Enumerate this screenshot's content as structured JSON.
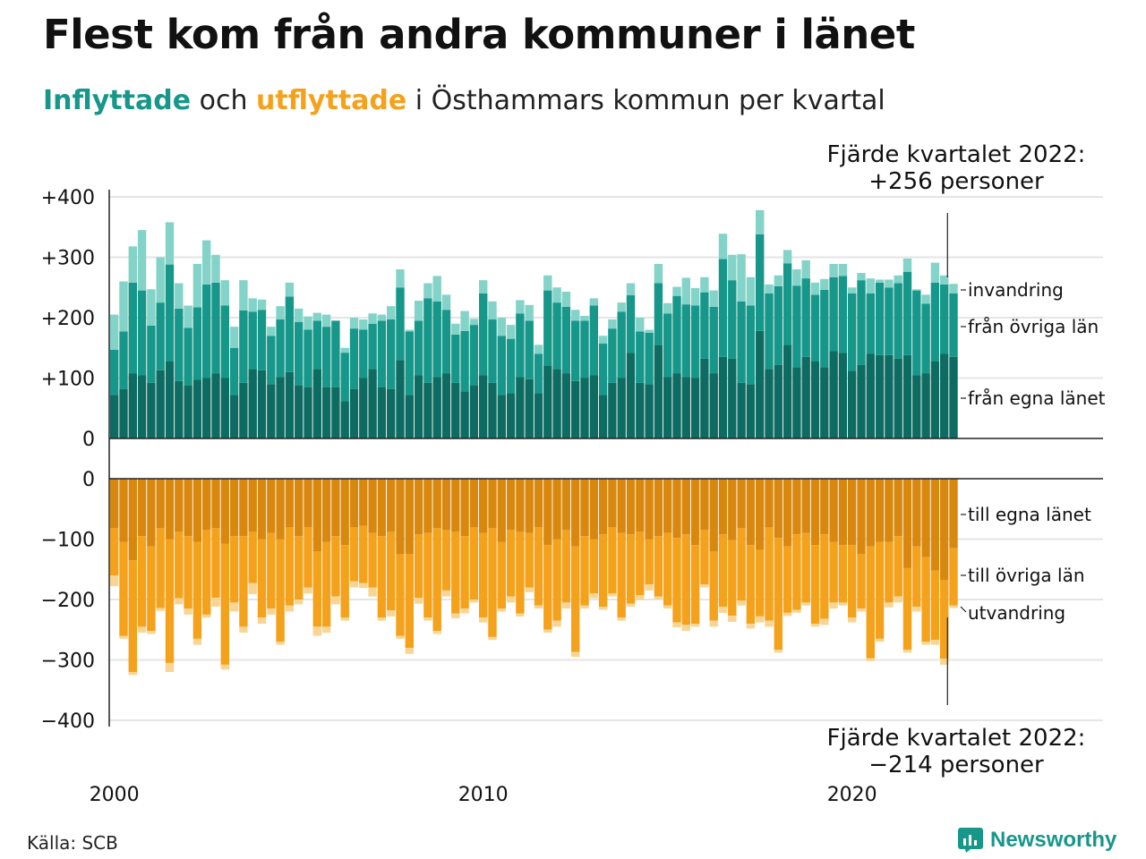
{
  "title": "Flest kom från andra kommuner i länet",
  "subtitle": {
    "in_word": "Inflyttade",
    "and_word": " och ",
    "out_word": "utflyttade",
    "rest": " i Östhammars kommun per kvartal"
  },
  "source": "Källa: SCB",
  "brand": "Newsworthy",
  "colors": {
    "in_own": "#0d6b62",
    "in_other": "#17978a",
    "in_abroad": "#84d3c8",
    "out_own": "#d9880f",
    "out_other": "#f4a11b",
    "out_abroad": "#f8d595",
    "grid": "#e5e5e5",
    "text": "#111111"
  },
  "chart_data": {
    "type": "bar",
    "stacked": true,
    "x_start": 2000,
    "x_tick_labels": [
      "2000",
      "2010",
      "2020"
    ],
    "y_ticks_top": [
      "0",
      "+100",
      "+200",
      "+300",
      "+400"
    ],
    "y_ticks_bottom": [
      "0",
      "−100",
      "−200",
      "−300",
      "−400"
    ],
    "ylim_top": [
      0,
      400
    ],
    "ylim_bottom": [
      -400,
      0
    ],
    "grid": true,
    "annotations": {
      "top_line1": "Fjärde kvartalet 2022:",
      "top_line2": "+256 personer",
      "bottom_line1": "Fjärde kvartalet 2022:",
      "bottom_line2": "−214 personer"
    },
    "series_labels_in": {
      "abroad": "invandring",
      "other": "från övriga län",
      "own": "från egna länet"
    },
    "series_labels_out": {
      "own": "till egna länet",
      "other": "till övriga län",
      "abroad": "utvandring"
    },
    "in_own": [
      72,
      82,
      108,
      105,
      92,
      113,
      128,
      95,
      88,
      97,
      100,
      108,
      100,
      72,
      92,
      115,
      113,
      90,
      102,
      110,
      88,
      85,
      115,
      85,
      85,
      62,
      82,
      100,
      115,
      85,
      82,
      130,
      72,
      105,
      92,
      102,
      108,
      92,
      78,
      88,
      105,
      92,
      72,
      75,
      102,
      98,
      75,
      120,
      115,
      108,
      95,
      100,
      105,
      72,
      92,
      100,
      142,
      92,
      90,
      155,
      102,
      108,
      102,
      100,
      132,
      108,
      135,
      132,
      92,
      90,
      178,
      115,
      122,
      155,
      118,
      135,
      128,
      118,
      145,
      142,
      112,
      122,
      140,
      138,
      138,
      132,
      138,
      105,
      108,
      128,
      140,
      135
    ],
    "in_other": [
      75,
      95,
      150,
      140,
      95,
      112,
      160,
      120,
      95,
      120,
      155,
      150,
      120,
      78,
      120,
      95,
      100,
      80,
      95,
      125,
      105,
      95,
      80,
      100,
      110,
      80,
      100,
      80,
      75,
      110,
      115,
      120,
      105,
      90,
      140,
      125,
      105,
      80,
      100,
      100,
      135,
      105,
      98,
      90,
      105,
      97,
      65,
      125,
      110,
      110,
      100,
      95,
      115,
      85,
      90,
      110,
      95,
      85,
      85,
      102,
      105,
      128,
      120,
      120,
      110,
      110,
      162,
      130,
      135,
      130,
      160,
      125,
      130,
      135,
      135,
      130,
      110,
      128,
      122,
      127,
      128,
      140,
      100,
      120,
      112,
      125,
      138,
      140,
      115,
      130,
      115,
      105
    ],
    "in_abroad": [
      58,
      83,
      60,
      100,
      60,
      75,
      70,
      42,
      37,
      72,
      73,
      46,
      42,
      35,
      50,
      22,
      17,
      15,
      22,
      23,
      22,
      22,
      13,
      20,
      0,
      8,
      18,
      17,
      17,
      10,
      22,
      30,
      3,
      33,
      25,
      42,
      25,
      18,
      33,
      10,
      22,
      30,
      30,
      23,
      22,
      26,
      15,
      25,
      25,
      25,
      18,
      8,
      12,
      13,
      15,
      15,
      20,
      23,
      5,
      32,
      17,
      15,
      44,
      29,
      25,
      27,
      42,
      42,
      78,
      47,
      40,
      15,
      18,
      22,
      27,
      30,
      20,
      18,
      22,
      20,
      10,
      12,
      25,
      5,
      13,
      13,
      22,
      2,
      15,
      33,
      15,
      16
    ],
    "out_own": [
      82,
      105,
      135,
      95,
      112,
      82,
      100,
      88,
      95,
      105,
      85,
      82,
      108,
      95,
      95,
      88,
      100,
      90,
      100,
      80,
      95,
      80,
      120,
      105,
      95,
      110,
      80,
      78,
      90,
      95,
      88,
      125,
      125,
      92,
      90,
      82,
      85,
      88,
      95,
      80,
      90,
      82,
      105,
      85,
      88,
      90,
      80,
      110,
      100,
      85,
      112,
      95,
      100,
      92,
      80,
      90,
      92,
      88,
      100,
      95,
      90,
      98,
      92,
      110,
      85,
      120,
      92,
      102,
      82,
      110,
      118,
      80,
      98,
      112,
      92,
      90,
      110,
      92,
      105,
      110,
      110,
      125,
      112,
      105,
      105,
      95,
      148,
      112,
      130,
      152,
      168,
      115
    ],
    "out_other": [
      78,
      155,
      185,
      150,
      140,
      132,
      205,
      110,
      120,
      160,
      140,
      115,
      200,
      110,
      150,
      85,
      130,
      125,
      170,
      130,
      105,
      100,
      125,
      140,
      100,
      120,
      90,
      95,
      90,
      135,
      130,
      135,
      155,
      105,
      140,
      170,
      100,
      135,
      120,
      120,
      140,
      180,
      110,
      110,
      135,
      90,
      130,
      140,
      135,
      120,
      175,
      115,
      90,
      120,
      110,
      140,
      115,
      105,
      75,
      100,
      120,
      140,
      150,
      130,
      90,
      115,
      120,
      125,
      120,
      130,
      110,
      155,
      185,
      110,
      125,
      115,
      130,
      140,
      100,
      95,
      120,
      90,
      185,
      160,
      100,
      100,
      135,
      100,
      140,
      115,
      130,
      95
    ],
    "out_abroad": [
      18,
      5,
      5,
      10,
      5,
      5,
      15,
      10,
      10,
      10,
      5,
      15,
      8,
      15,
      10,
      18,
      10,
      10,
      5,
      10,
      8,
      10,
      15,
      10,
      13,
      5,
      10,
      8,
      15,
      5,
      10,
      5,
      10,
      10,
      5,
      5,
      10,
      8,
      8,
      5,
      8,
      5,
      5,
      10,
      5,
      8,
      5,
      5,
      10,
      10,
      8,
      5,
      8,
      5,
      5,
      5,
      5,
      8,
      10,
      5,
      5,
      8,
      10,
      5,
      5,
      10,
      10,
      10,
      8,
      8,
      10,
      10,
      5,
      5,
      5,
      5,
      5,
      10,
      10,
      5,
      8,
      5,
      5,
      5,
      8,
      10,
      5,
      8,
      5,
      8,
      10,
      4
    ]
  }
}
